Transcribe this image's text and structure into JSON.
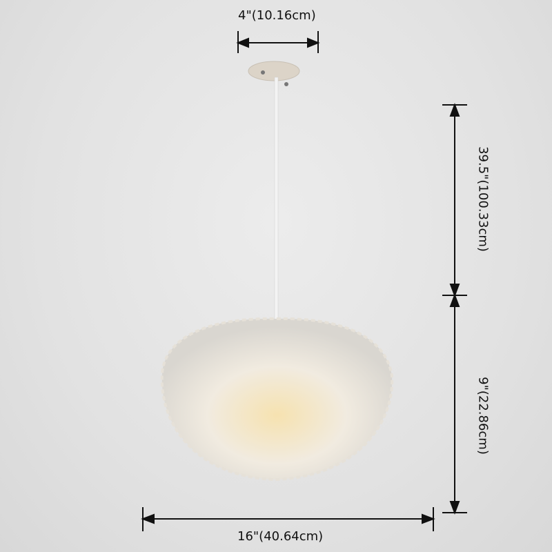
{
  "dimensions": {
    "canopy_width": "4\"(10.16cm)",
    "cord_length": "39.5\"(100.33cm)",
    "shade_height": "9\"(22.86cm)",
    "shade_width": "16\"(40.64cm)"
  },
  "colors": {
    "background": "#e4e4e4",
    "annotation": "#111111",
    "shade": "#f4efe6",
    "glow": "#f3dfae"
  }
}
